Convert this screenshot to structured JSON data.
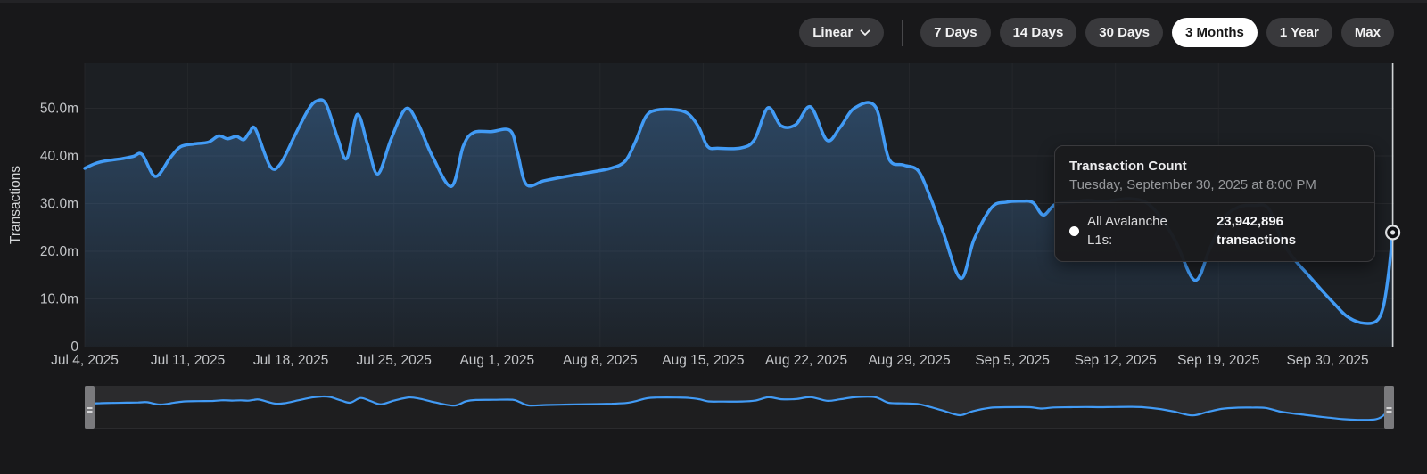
{
  "controls": {
    "scale_selector": {
      "label": "Linear"
    },
    "ranges": [
      {
        "label": "7 Days",
        "active": false
      },
      {
        "label": "14 Days",
        "active": false
      },
      {
        "label": "30 Days",
        "active": false
      },
      {
        "label": "3 Months",
        "active": true
      },
      {
        "label": "1 Year",
        "active": false
      },
      {
        "label": "Max",
        "active": false
      }
    ]
  },
  "tooltip": {
    "title": "Transaction Count",
    "timestamp": "Tuesday, September 30, 2025 at 8:00 PM",
    "series_label": "All Avalanche L1s:",
    "value_text": "23,942,896 transactions"
  },
  "colors": {
    "line": "#429bf5",
    "area_fill": "#4a90d9",
    "plot_bg": "#1c1f23",
    "page_bg": "#18181a",
    "grid": "#27292d",
    "axis_text": "#c3c5c8",
    "crosshair": "#d2d4d6",
    "nav_strip": "#2b2b2d",
    "nav_handle": "#7a7a7d",
    "active_pill_bg": "#ffffff",
    "pill_bg": "#39393c"
  },
  "chart_data": {
    "type": "area",
    "title": "Transaction Count",
    "ylabel": "Transactions",
    "unit": "millions of transactions per day",
    "ylim": [
      0,
      55
    ],
    "grid": true,
    "legend_position": "none",
    "y_ticks": [
      {
        "value": 0,
        "label": "0"
      },
      {
        "value": 10,
        "label": "10.0m"
      },
      {
        "value": 20,
        "label": "20.0m"
      },
      {
        "value": 30,
        "label": "30.0m"
      },
      {
        "value": 40,
        "label": "40.0m"
      },
      {
        "value": 50,
        "label": "50.0m"
      }
    ],
    "x_ticks": [
      {
        "day": 0,
        "label": "Jul 4, 2025"
      },
      {
        "day": 7,
        "label": "Jul 11, 2025"
      },
      {
        "day": 14,
        "label": "Jul 18, 2025"
      },
      {
        "day": 21,
        "label": "Jul 25, 2025"
      },
      {
        "day": 28,
        "label": "Aug 1, 2025"
      },
      {
        "day": 35,
        "label": "Aug 8, 2025"
      },
      {
        "day": 42,
        "label": "Aug 15, 2025"
      },
      {
        "day": 49,
        "label": "Aug 22, 2025"
      },
      {
        "day": 56,
        "label": "Aug 29, 2025"
      },
      {
        "day": 63,
        "label": "Sep 5, 2025"
      },
      {
        "day": 70,
        "label": "Sep 12, 2025"
      },
      {
        "day": 77,
        "label": "Sep 19, 2025"
      },
      {
        "day": 88.83,
        "label": "Sep 30, 2025",
        "align": "end"
      }
    ],
    "series": [
      {
        "name": "All Avalanche L1s",
        "points": [
          [
            0,
            37.4
          ],
          [
            0.7,
            38.4
          ],
          [
            1.5,
            39.0
          ],
          [
            2.5,
            39.4
          ],
          [
            3.3,
            39.9
          ],
          [
            3.9,
            40.3
          ],
          [
            4.8,
            35.7
          ],
          [
            5.8,
            39.6
          ],
          [
            6.5,
            41.9
          ],
          [
            7.4,
            42.5
          ],
          [
            8.4,
            42.9
          ],
          [
            9.1,
            44.2
          ],
          [
            9.7,
            43.6
          ],
          [
            10.3,
            44.1
          ],
          [
            10.8,
            43.4
          ],
          [
            11.2,
            45.0
          ],
          [
            11.6,
            45.6
          ],
          [
            12.6,
            37.8
          ],
          [
            13.3,
            38.4
          ],
          [
            14.3,
            44.5
          ],
          [
            15.2,
            49.8
          ],
          [
            15.8,
            51.6
          ],
          [
            16.4,
            50.8
          ],
          [
            17.2,
            43.5
          ],
          [
            17.8,
            39.5
          ],
          [
            18.5,
            48.7
          ],
          [
            19.2,
            42.5
          ],
          [
            19.9,
            36.2
          ],
          [
            20.8,
            43.5
          ],
          [
            21.8,
            49.9
          ],
          [
            22.6,
            47.0
          ],
          [
            23.6,
            40.0
          ],
          [
            24.9,
            33.6
          ],
          [
            25.7,
            42.0
          ],
          [
            26.4,
            44.9
          ],
          [
            27.6,
            45.1
          ],
          [
            28.9,
            45.3
          ],
          [
            29.4,
            40.5
          ],
          [
            30.0,
            34.0
          ],
          [
            31.2,
            34.8
          ],
          [
            32.7,
            35.7
          ],
          [
            34.2,
            36.5
          ],
          [
            35.7,
            37.4
          ],
          [
            36.7,
            38.9
          ],
          [
            37.4,
            43.0
          ],
          [
            38.1,
            48.2
          ],
          [
            38.8,
            49.6
          ],
          [
            40.1,
            49.7
          ],
          [
            41.0,
            48.8
          ],
          [
            41.7,
            46.0
          ],
          [
            42.3,
            42.0
          ],
          [
            43.0,
            41.6
          ],
          [
            44.6,
            41.7
          ],
          [
            45.5,
            43.5
          ],
          [
            46.4,
            50.1
          ],
          [
            47.3,
            46.3
          ],
          [
            48.3,
            46.6
          ],
          [
            49.3,
            50.3
          ],
          [
            50.4,
            43.3
          ],
          [
            51.3,
            46.0
          ],
          [
            52.3,
            50.1
          ],
          [
            53.7,
            50.3
          ],
          [
            54.6,
            39.5
          ],
          [
            55.6,
            38.1
          ],
          [
            56.6,
            36.9
          ],
          [
            57.4,
            31.5
          ],
          [
            58.3,
            24.0
          ],
          [
            59.5,
            14.3
          ],
          [
            60.4,
            22.5
          ],
          [
            61.6,
            29.2
          ],
          [
            62.6,
            30.3
          ],
          [
            63.6,
            30.5
          ],
          [
            64.4,
            30.2
          ],
          [
            65.1,
            27.6
          ],
          [
            65.9,
            29.8
          ],
          [
            67.1,
            30.3
          ],
          [
            68.1,
            30.7
          ],
          [
            69.1,
            30.4
          ],
          [
            70.1,
            30.8
          ],
          [
            71.1,
            31.0
          ],
          [
            72.1,
            30.2
          ],
          [
            73.1,
            27.0
          ],
          [
            74.1,
            22.0
          ],
          [
            75.4,
            13.9
          ],
          [
            76.4,
            20.5
          ],
          [
            77.4,
            27.0
          ],
          [
            78.4,
            29.3
          ],
          [
            79.4,
            29.6
          ],
          [
            80.4,
            29.0
          ],
          [
            81.3,
            22.3
          ],
          [
            82.1,
            18.5
          ],
          [
            83.1,
            15.0
          ],
          [
            84.1,
            11.5
          ],
          [
            84.8,
            9.2
          ],
          [
            85.7,
            6.4
          ],
          [
            86.7,
            5.0
          ],
          [
            87.7,
            5.3
          ],
          [
            88.2,
            8.5
          ],
          [
            88.55,
            15.5
          ],
          [
            88.83,
            23.94
          ]
        ]
      }
    ],
    "highlight_point": {
      "day": 88.83,
      "value_millions": 23.942896,
      "exact": "23,942,896"
    }
  }
}
